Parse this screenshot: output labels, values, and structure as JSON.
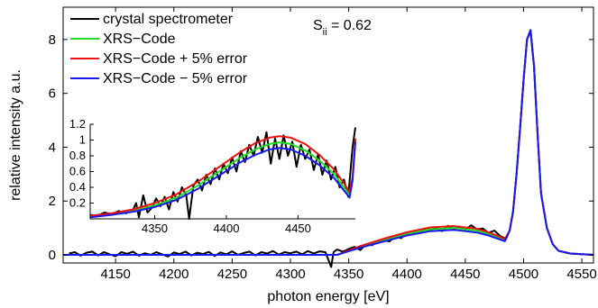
{
  "chart_data": {
    "type": "line",
    "xlabel": "photon energy [eV]",
    "ylabel": "relative  intensity a.u.",
    "xlim": [
      4105,
      4560
    ],
    "ylim": [
      -0.3,
      9.2
    ],
    "xticks": [
      "4150",
      "4200",
      "4250",
      "4300",
      "4350",
      "4400",
      "4450",
      "4500",
      "4550"
    ],
    "yticks": [
      "0",
      "2",
      "4",
      "6",
      "8"
    ],
    "annotation": {
      "text": "S",
      "subscript": "ii",
      "value_text": " = 0.62"
    },
    "legend": {
      "placement": "top-left",
      "entries": [
        "crystal spectrometer",
        "XRS−Code",
        "XRS−Code + 5% error",
        "XRS−Code  − 5% error"
      ]
    },
    "series": [
      {
        "name": "crystal spectrometer",
        "color": "#000000",
        "x": [
          4110,
          4115,
          4120,
          4125,
          4130,
          4135,
          4140,
          4145,
          4150,
          4155,
          4160,
          4165,
          4170,
          4175,
          4180,
          4185,
          4190,
          4195,
          4200,
          4205,
          4210,
          4215,
          4220,
          4225,
          4230,
          4235,
          4240,
          4245,
          4250,
          4255,
          4260,
          4265,
          4270,
          4275,
          4280,
          4285,
          4290,
          4295,
          4300,
          4305,
          4310,
          4315,
          4320,
          4325,
          4330,
          4335,
          4337,
          4340,
          4345,
          4350,
          4355,
          4360,
          4365,
          4370,
          4375,
          4380,
          4385,
          4390,
          4395,
          4400,
          4405,
          4410,
          4415,
          4420,
          4425,
          4430,
          4435,
          4440,
          4445,
          4450,
          4455,
          4460,
          4465,
          4470,
          4475,
          4480,
          4485,
          4488,
          4491,
          4494,
          4497,
          4500,
          4503,
          4506,
          4509,
          4512,
          4515,
          4520,
          4525,
          4530,
          4540,
          4550,
          4560
        ],
        "y": [
          0.05,
          0.1,
          -0.03,
          0.08,
          0.12,
          -0.02,
          0.1,
          0.02,
          -0.05,
          0.1,
          0.04,
          0.12,
          -0.03,
          0.06,
          0.0,
          0.1,
          0.02,
          -0.06,
          0.09,
          0.03,
          0.12,
          -0.02,
          0.08,
          0.03,
          0.11,
          -0.04,
          0.09,
          0.02,
          0.13,
          0.0,
          0.07,
          0.12,
          -0.02,
          0.1,
          0.05,
          0.14,
          0.01,
          0.1,
          0.06,
          0.12,
          0.02,
          0.14,
          0.05,
          0.13,
          0.1,
          -0.45,
          0.1,
          0.2,
          0.12,
          0.22,
          0.3,
          0.18,
          0.4,
          0.36,
          0.5,
          0.55,
          0.5,
          0.7,
          0.62,
          0.82,
          0.85,
          0.8,
          0.95,
          0.9,
          1.02,
          0.88,
          1.08,
          0.96,
          1.05,
          0.92,
          1.1,
          0.95,
          0.98,
          0.82,
          0.9,
          0.7,
          0.6,
          0.9,
          1.6,
          3.0,
          4.7,
          6.5,
          8.0,
          8.3,
          7.0,
          4.5,
          2.3,
          1.0,
          0.4,
          0.15,
          0.05,
          0.02,
          0.0
        ]
      },
      {
        "name": "XRS−Code",
        "color": "#22dd22",
        "x": [
          4105,
          4200,
          4300,
          4340,
          4360,
          4380,
          4400,
          4420,
          4440,
          4460,
          4470,
          4480,
          4484,
          4488,
          4491,
          4494,
          4497,
          4500,
          4503,
          4506,
          4509,
          4512,
          4515,
          4520,
          4525,
          4530,
          4540,
          4560
        ],
        "y": [
          0.0,
          0.0,
          0.0,
          0.0,
          0.3,
          0.55,
          0.78,
          0.95,
          1.0,
          0.9,
          0.78,
          0.62,
          0.55,
          0.9,
          1.6,
          3.0,
          4.7,
          6.5,
          8.0,
          8.35,
          7.0,
          4.5,
          2.3,
          1.0,
          0.4,
          0.15,
          0.05,
          0.0
        ]
      },
      {
        "name": "XRS−Code + 5% error",
        "color": "#ee1111",
        "x": [
          4105,
          4200,
          4300,
          4340,
          4360,
          4380,
          4400,
          4420,
          4440,
          4460,
          4470,
          4480,
          4484,
          4488,
          4491,
          4494,
          4497,
          4500,
          4503,
          4506,
          4509,
          4512,
          4515,
          4520,
          4525,
          4530,
          4540,
          4560
        ],
        "y": [
          0.0,
          0.0,
          0.0,
          0.0,
          0.33,
          0.6,
          0.84,
          1.02,
          1.07,
          0.97,
          0.84,
          0.67,
          0.59,
          0.9,
          1.6,
          3.0,
          4.7,
          6.5,
          8.0,
          8.35,
          7.0,
          4.5,
          2.3,
          1.0,
          0.4,
          0.15,
          0.05,
          0.0
        ]
      },
      {
        "name": "XRS−Code  − 5% error",
        "color": "#1a1aee",
        "x": [
          4105,
          4200,
          4300,
          4340,
          4360,
          4380,
          4400,
          4420,
          4440,
          4460,
          4470,
          4480,
          4484,
          4488,
          4491,
          4494,
          4497,
          4500,
          4503,
          4506,
          4509,
          4512,
          4515,
          4520,
          4525,
          4530,
          4540,
          4560
        ],
        "y": [
          0.0,
          0.0,
          0.0,
          0.0,
          0.27,
          0.5,
          0.72,
          0.88,
          0.93,
          0.83,
          0.72,
          0.57,
          0.51,
          0.9,
          1.6,
          3.0,
          4.7,
          6.5,
          8.0,
          8.35,
          7.0,
          4.5,
          2.3,
          1.0,
          0.4,
          0.15,
          0.05,
          0.0
        ]
      }
    ],
    "inset": {
      "xlim": [
        4305,
        4490
      ],
      "ylim": [
        0,
        1.2
      ],
      "xticks": [
        "4350",
        "4400",
        "4450"
      ],
      "yticks": [
        "0.2",
        "0.4",
        "0.6",
        "0.8",
        "1",
        "1.2"
      ],
      "series": [
        {
          "name": "crystal spectrometer",
          "color": "#000000",
          "x": [
            4305,
            4310,
            4315,
            4320,
            4325,
            4330,
            4335,
            4337,
            4339,
            4342,
            4345,
            4348,
            4351,
            4354,
            4357,
            4360,
            4363,
            4366,
            4369,
            4372,
            4374,
            4377,
            4380,
            4383,
            4386,
            4389,
            4392,
            4395,
            4398,
            4401,
            4404,
            4407,
            4410,
            4413,
            4416,
            4419,
            4422,
            4425,
            4428,
            4431,
            4434,
            4437,
            4440,
            4443,
            4446,
            4449,
            4452,
            4455,
            4458,
            4461,
            4464,
            4467,
            4470,
            4473,
            4476,
            4479,
            4482,
            4485,
            4488,
            4490
          ],
          "y": [
            0.05,
            0.04,
            0.08,
            0.06,
            0.1,
            0.07,
            0.12,
            0.2,
            0.02,
            0.3,
            0.08,
            0.14,
            0.26,
            0.16,
            0.28,
            0.12,
            0.34,
            0.22,
            0.4,
            0.3,
            0.0,
            0.42,
            0.5,
            0.36,
            0.56,
            0.44,
            0.64,
            0.5,
            0.7,
            0.58,
            0.78,
            0.6,
            0.86,
            0.72,
            0.94,
            0.8,
            1.04,
            0.84,
            1.1,
            0.7,
            1.02,
            0.76,
            1.06,
            0.8,
            0.98,
            0.66,
            0.94,
            0.76,
            0.88,
            0.62,
            0.82,
            0.56,
            0.74,
            0.5,
            0.66,
            0.4,
            0.5,
            0.28,
            0.9,
            1.16
          ]
        },
        {
          "name": "XRS−Code",
          "color": "#22dd22",
          "x": [
            4305,
            4320,
            4335,
            4350,
            4365,
            4380,
            4395,
            4410,
            4420,
            4430,
            4437,
            4445,
            4455,
            4465,
            4475,
            4482,
            4486,
            4488,
            4490
          ],
          "y": [
            0.03,
            0.06,
            0.1,
            0.17,
            0.27,
            0.42,
            0.6,
            0.78,
            0.88,
            0.95,
            0.97,
            0.95,
            0.87,
            0.74,
            0.57,
            0.4,
            0.3,
            0.5,
            1.0
          ]
        },
        {
          "name": "XRS−Code + 5% error",
          "color": "#ee1111",
          "x": [
            4305,
            4320,
            4335,
            4350,
            4365,
            4380,
            4395,
            4410,
            4420,
            4430,
            4437,
            4445,
            4455,
            4465,
            4475,
            4482,
            4486,
            4488,
            4490
          ],
          "y": [
            0.04,
            0.07,
            0.12,
            0.2,
            0.31,
            0.47,
            0.66,
            0.85,
            0.96,
            1.03,
            1.05,
            1.03,
            0.95,
            0.81,
            0.63,
            0.45,
            0.34,
            0.52,
            1.02
          ]
        },
        {
          "name": "XRS−Code  − 5% error",
          "color": "#1a1aee",
          "x": [
            4305,
            4320,
            4335,
            4350,
            4365,
            4380,
            4395,
            4410,
            4420,
            4430,
            4437,
            4445,
            4455,
            4465,
            4475,
            4482,
            4486,
            4488,
            4490
          ],
          "y": [
            0.02,
            0.05,
            0.09,
            0.15,
            0.24,
            0.38,
            0.55,
            0.72,
            0.81,
            0.88,
            0.9,
            0.88,
            0.8,
            0.68,
            0.52,
            0.36,
            0.27,
            0.48,
            0.98
          ]
        }
      ]
    }
  }
}
